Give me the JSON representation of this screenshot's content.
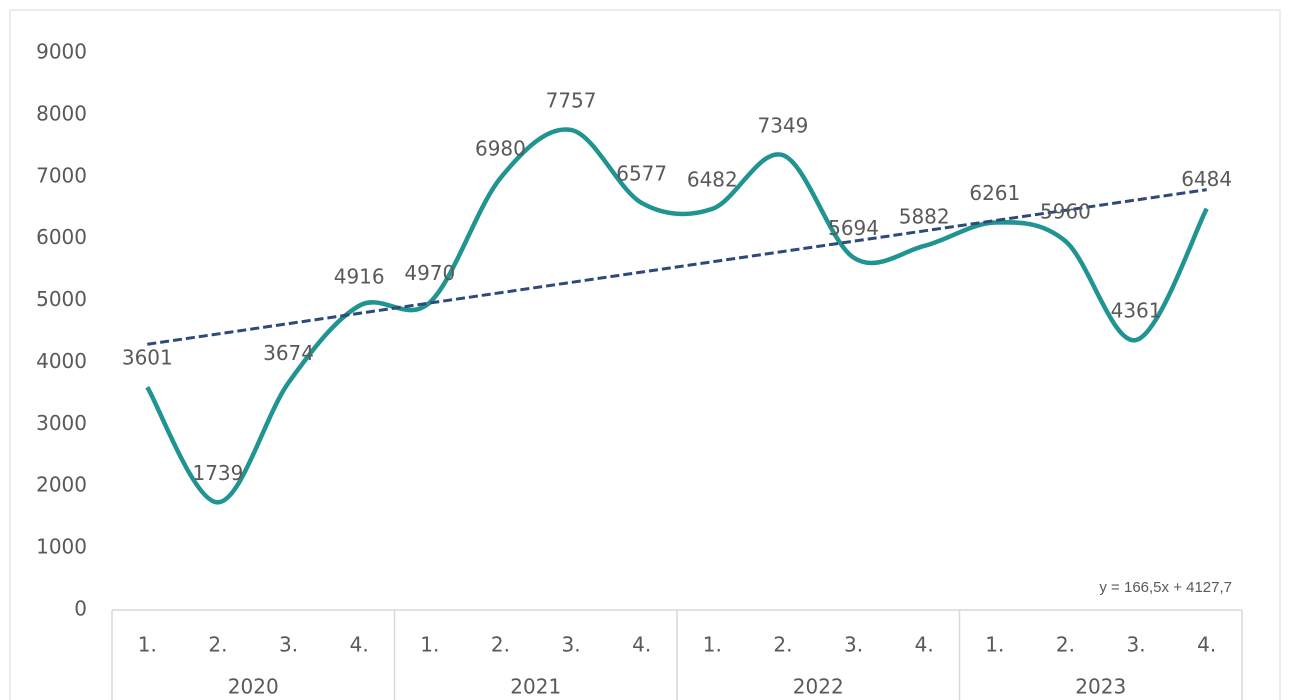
{
  "chart_data": {
    "type": "line",
    "categories": [
      "1.",
      "2.",
      "3.",
      "4.",
      "1.",
      "2.",
      "3.",
      "4.",
      "1.",
      "2.",
      "3.",
      "4.",
      "1.",
      "2.",
      "3.",
      "4."
    ],
    "groups": [
      "2020",
      "2021",
      "2022",
      "2023"
    ],
    "series": [
      {
        "color": "#1f9490",
        "values": [
          3601,
          1739,
          3674,
          4916,
          4970,
          6980,
          7757,
          6577,
          6482,
          7349,
          5694,
          5882,
          6261,
          5960,
          4361,
          6484
        ]
      }
    ],
    "trendline": {
      "label": "y = 166,5x + 4127,7",
      "slope": 166.5,
      "intercept": 4127.7,
      "color": "#2e4a7a"
    },
    "ylim": [
      0,
      9000
    ],
    "yticks": [
      0,
      1000,
      2000,
      3000,
      4000,
      5000,
      6000,
      7000,
      8000,
      9000
    ],
    "grid": false,
    "smooth": true
  }
}
